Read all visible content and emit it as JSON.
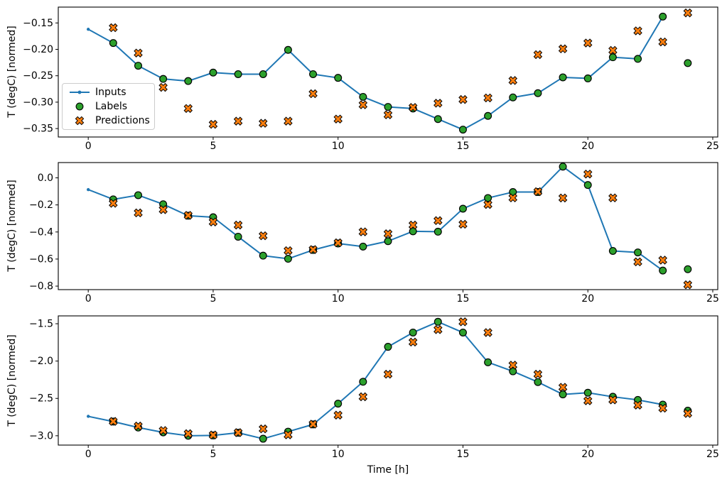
{
  "figure": {
    "background": "#ffffff",
    "axis_color": "#000000",
    "legend": {
      "items": [
        {
          "label": "Inputs",
          "marker": "line-with-dot",
          "color": "#1f77b4",
          "edge_color": "#1f77b4"
        },
        {
          "label": "Labels",
          "marker": "circle",
          "color": "#2ca02c",
          "edge_color": "#000000"
        },
        {
          "label": "Predictions",
          "marker": "x",
          "color": "#ff7f0e",
          "edge_color": "#000000"
        }
      ]
    }
  },
  "chart_data": [
    {
      "panel": "top",
      "type": "line+scatter",
      "title": "",
      "xlabel": "",
      "ylabel": "T (degC) [normed]",
      "xlim": [
        -1.2,
        25.2
      ],
      "ylim": [
        -0.366,
        -0.12
      ],
      "grid": false,
      "legend_position": "upper-left-inside",
      "xticks": [
        0,
        5,
        10,
        15,
        20,
        25
      ],
      "xtick_labels": [
        "0",
        "5",
        "10",
        "15",
        "20",
        "25"
      ],
      "yticks": [
        -0.15,
        -0.2,
        -0.25,
        -0.3,
        -0.35
      ],
      "ytick_labels": [
        "−0.15",
        "−0.20",
        "−0.25",
        "−0.30",
        "−0.35"
      ],
      "series": [
        {
          "name": "Inputs",
          "kind": "line",
          "marker": "dot",
          "color": "#1f77b4",
          "x": [
            0,
            1,
            2,
            3,
            4,
            5,
            6,
            7,
            8,
            9,
            10,
            11,
            12,
            13,
            14,
            15,
            16,
            17,
            18,
            19,
            20,
            21,
            22,
            23
          ],
          "y": [
            -0.162,
            -0.188,
            -0.231,
            -0.256,
            -0.26,
            -0.244,
            -0.247,
            -0.247,
            -0.201,
            -0.247,
            -0.254,
            -0.29,
            -0.309,
            -0.312,
            -0.332,
            -0.352,
            -0.326,
            -0.291,
            -0.283,
            -0.253,
            -0.255,
            -0.215,
            -0.218,
            -0.138
          ]
        },
        {
          "name": "Labels",
          "kind": "scatter",
          "marker": "circle",
          "color": "#2ca02c",
          "x": [
            1,
            2,
            3,
            4,
            5,
            6,
            7,
            8,
            9,
            10,
            11,
            12,
            13,
            14,
            15,
            16,
            17,
            18,
            19,
            20,
            21,
            22,
            23,
            24
          ],
          "y": [
            -0.188,
            -0.231,
            -0.256,
            -0.26,
            -0.244,
            -0.247,
            -0.247,
            -0.201,
            -0.247,
            -0.254,
            -0.29,
            -0.309,
            -0.312,
            -0.332,
            -0.352,
            -0.326,
            -0.291,
            -0.283,
            -0.253,
            -0.255,
            -0.215,
            -0.218,
            -0.138,
            -0.226
          ]
        },
        {
          "name": "Predictions",
          "kind": "scatter",
          "marker": "X",
          "color": "#ff7f0e",
          "x": [
            1,
            2,
            3,
            4,
            5,
            6,
            7,
            8,
            9,
            10,
            11,
            12,
            13,
            14,
            15,
            16,
            17,
            18,
            19,
            20,
            21,
            22,
            23,
            24
          ],
          "y": [
            -0.159,
            -0.207,
            -0.272,
            -0.312,
            -0.342,
            -0.336,
            -0.34,
            -0.336,
            -0.284,
            -0.332,
            -0.305,
            -0.324,
            -0.31,
            -0.302,
            -0.295,
            -0.292,
            -0.259,
            -0.21,
            -0.199,
            -0.188,
            -0.202,
            -0.165,
            -0.186,
            -0.131
          ]
        }
      ]
    },
    {
      "panel": "middle",
      "type": "line+scatter",
      "title": "",
      "xlabel": "",
      "ylabel": "T (degC) [normed]",
      "xlim": [
        -1.2,
        25.2
      ],
      "ylim": [
        -0.826,
        0.113
      ],
      "grid": false,
      "xticks": [
        0,
        5,
        10,
        15,
        20,
        25
      ],
      "xtick_labels": [
        "0",
        "5",
        "10",
        "15",
        "20",
        "25"
      ],
      "yticks": [
        0.0,
        -0.2,
        -0.4,
        -0.6,
        -0.8
      ],
      "ytick_labels": [
        "0.0",
        "−0.2",
        "−0.4",
        "−0.6",
        "−0.8"
      ],
      "series": [
        {
          "name": "Inputs",
          "kind": "line",
          "marker": "dot",
          "color": "#1f77b4",
          "x": [
            0,
            1,
            2,
            3,
            4,
            5,
            6,
            7,
            8,
            9,
            10,
            11,
            12,
            13,
            14,
            15,
            16,
            17,
            18,
            19,
            20,
            21,
            22,
            23
          ],
          "y": [
            -0.087,
            -0.159,
            -0.128,
            -0.195,
            -0.28,
            -0.291,
            -0.435,
            -0.575,
            -0.598,
            -0.533,
            -0.485,
            -0.508,
            -0.468,
            -0.395,
            -0.398,
            -0.228,
            -0.149,
            -0.105,
            -0.105,
            0.083,
            -0.053,
            -0.54,
            -0.551,
            -0.685
          ]
        },
        {
          "name": "Labels",
          "kind": "scatter",
          "marker": "circle",
          "color": "#2ca02c",
          "x": [
            1,
            2,
            3,
            4,
            5,
            6,
            7,
            8,
            9,
            10,
            11,
            12,
            13,
            14,
            15,
            16,
            17,
            18,
            19,
            20,
            21,
            22,
            23,
            24
          ],
          "y": [
            -0.159,
            -0.128,
            -0.195,
            -0.28,
            -0.291,
            -0.435,
            -0.575,
            -0.598,
            -0.533,
            -0.485,
            -0.508,
            -0.468,
            -0.395,
            -0.398,
            -0.228,
            -0.149,
            -0.105,
            -0.105,
            0.083,
            -0.053,
            -0.54,
            -0.551,
            -0.685,
            -0.675
          ]
        },
        {
          "name": "Predictions",
          "kind": "scatter",
          "marker": "X",
          "color": "#ff7f0e",
          "x": [
            1,
            2,
            3,
            4,
            5,
            6,
            7,
            8,
            9,
            10,
            11,
            12,
            13,
            14,
            15,
            16,
            17,
            18,
            19,
            20,
            21,
            22,
            23,
            24
          ],
          "y": [
            -0.188,
            -0.259,
            -0.235,
            -0.277,
            -0.326,
            -0.349,
            -0.428,
            -0.538,
            -0.53,
            -0.48,
            -0.399,
            -0.413,
            -0.349,
            -0.316,
            -0.343,
            -0.197,
            -0.148,
            -0.102,
            -0.149,
            0.028,
            -0.148,
            -0.621,
            -0.608,
            -0.79
          ]
        }
      ]
    },
    {
      "panel": "bottom",
      "type": "line+scatter",
      "title": "",
      "xlabel": "Time [h]",
      "ylabel": "T (degC) [normed]",
      "xlim": [
        -1.2,
        25.2
      ],
      "ylim": [
        -3.125,
        -1.395
      ],
      "grid": false,
      "xticks": [
        0,
        5,
        10,
        15,
        20,
        25
      ],
      "xtick_labels": [
        "0",
        "5",
        "10",
        "15",
        "20",
        "25"
      ],
      "yticks": [
        -1.5,
        -2.0,
        -2.5,
        -3.0
      ],
      "ytick_labels": [
        "−1.5",
        "−2.0",
        "−2.5",
        "−3.0"
      ],
      "series": [
        {
          "name": "Inputs",
          "kind": "line",
          "marker": "dot",
          "color": "#1f77b4",
          "x": [
            0,
            1,
            2,
            3,
            4,
            5,
            6,
            7,
            8,
            9,
            10,
            11,
            12,
            13,
            14,
            15,
            16,
            17,
            18,
            19,
            20,
            21,
            22,
            23
          ],
          "y": [
            -2.74,
            -2.81,
            -2.89,
            -2.955,
            -3.0,
            -2.995,
            -2.96,
            -3.04,
            -2.945,
            -2.848,
            -2.57,
            -2.277,
            -1.809,
            -1.618,
            -1.474,
            -1.618,
            -2.016,
            -2.137,
            -2.281,
            -2.446,
            -2.424,
            -2.478,
            -2.52,
            -2.583
          ]
        },
        {
          "name": "Labels",
          "kind": "scatter",
          "marker": "circle",
          "color": "#2ca02c",
          "x": [
            1,
            2,
            3,
            4,
            5,
            6,
            7,
            8,
            9,
            10,
            11,
            12,
            13,
            14,
            15,
            16,
            17,
            18,
            19,
            20,
            21,
            22,
            23,
            24
          ],
          "y": [
            -2.81,
            -2.89,
            -2.955,
            -3.0,
            -2.995,
            -2.96,
            -3.04,
            -2.945,
            -2.848,
            -2.57,
            -2.277,
            -1.809,
            -1.618,
            -1.474,
            -1.618,
            -2.016,
            -2.137,
            -2.281,
            -2.446,
            -2.424,
            -2.478,
            -2.52,
            -2.583,
            -2.664
          ]
        },
        {
          "name": "Predictions",
          "kind": "scatter",
          "marker": "X",
          "color": "#ff7f0e",
          "x": [
            1,
            2,
            3,
            4,
            5,
            6,
            7,
            8,
            9,
            10,
            11,
            12,
            13,
            14,
            15,
            16,
            17,
            18,
            19,
            20,
            21,
            22,
            23,
            24
          ],
          "y": [
            -2.808,
            -2.87,
            -2.93,
            -2.972,
            -2.99,
            -2.958,
            -2.908,
            -2.988,
            -2.845,
            -2.724,
            -2.478,
            -2.176,
            -1.746,
            -1.579,
            -1.474,
            -1.618,
            -2.054,
            -2.176,
            -2.351,
            -2.532,
            -2.52,
            -2.59,
            -2.631,
            -2.702
          ]
        }
      ]
    }
  ]
}
